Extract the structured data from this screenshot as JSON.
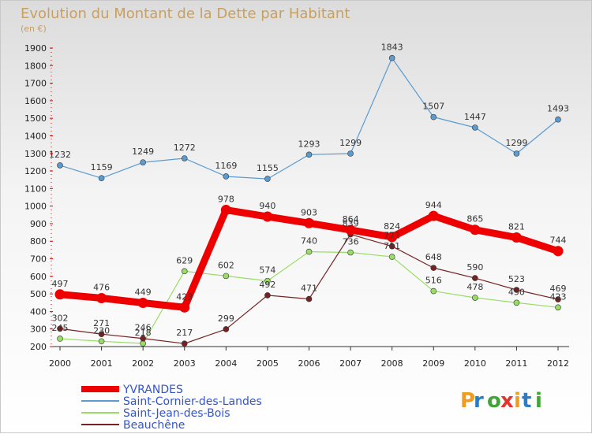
{
  "chart_data": {
    "type": "line",
    "title": "Evolution du Montant de la Dette par Habitant",
    "subtitle": "(en €)",
    "x": [
      "2000",
      "2001",
      "2002",
      "2003",
      "2004",
      "2005",
      "2006",
      "2007",
      "2008",
      "2009",
      "2010",
      "2011",
      "2012"
    ],
    "ylim": [
      200,
      1900
    ],
    "yticks": [
      200,
      300,
      400,
      500,
      600,
      700,
      800,
      900,
      1000,
      1100,
      1200,
      1300,
      1400,
      1500,
      1600,
      1700,
      1800,
      1900
    ],
    "grid": false,
    "legend": "bottom-left",
    "series": [
      {
        "name": "YVRANDES",
        "color": "#ee0000",
        "values": [
          497,
          476,
          449,
          423,
          978,
          940,
          903,
          864,
          824,
          944,
          865,
          821,
          744
        ]
      },
      {
        "name": "Saint-Cornier-des-Landes",
        "color": "#5b9bd0",
        "values": [
          1232,
          1159,
          1249,
          1272,
          1169,
          1155,
          1293,
          1299,
          1843,
          1507,
          1447,
          1299,
          1493
        ]
      },
      {
        "name": "Saint-Jean-des-Bois",
        "color": "#99dd66",
        "values": [
          245,
          230,
          218,
          629,
          602,
          574,
          740,
          736,
          711,
          516,
          478,
          450,
          423
        ]
      },
      {
        "name": "Beauchêne",
        "color": "#772222",
        "values": [
          302,
          271,
          246,
          217,
          299,
          492,
          471,
          839,
          771,
          648,
          590,
          523,
          469
        ]
      }
    ]
  },
  "colors": {
    "title": "#c8a060",
    "axis": "#333333",
    "tick_red": "#ee0000"
  },
  "logo": {
    "text": "Proxiti"
  }
}
